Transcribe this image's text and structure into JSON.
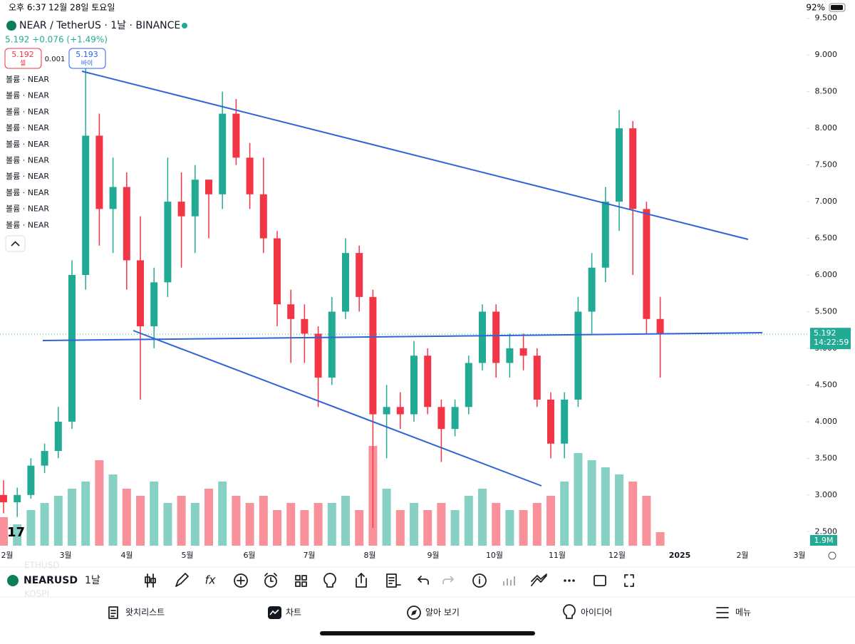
{
  "status_bar": {
    "time": "오후 6:37",
    "date": "12월 28일 토요일",
    "battery": "92%"
  },
  "header": {
    "symbol_title": "NEAR / TetherUS · 1날 · BINANCE",
    "price_change": "5.192 +0.076 (+1.49%)",
    "sell_price": "5.192",
    "sell_label": "셀",
    "spread": "0.001",
    "buy_price": "5.193",
    "buy_label": "바이",
    "indicators": [
      "볼륨 · NEAR",
      "볼륨 · NEAR",
      "볼륨 · NEAR",
      "볼륨 · NEAR",
      "볼륨 · NEAR",
      "볼륨 · NEAR",
      "볼륨 · NEAR",
      "볼륨 · NEAR",
      "볼륨 · NEAR",
      "볼륨 · NEAR"
    ]
  },
  "chart_data": {
    "type": "candlestick",
    "up_color": "#22ab94",
    "down_color": "#f23645",
    "ylim": [
      2.25,
      9.75
    ],
    "yticks": [
      {
        "value": 9.5,
        "label": "9.500"
      },
      {
        "value": 9.0,
        "label": "9.000"
      },
      {
        "value": 8.5,
        "label": "8.500"
      },
      {
        "value": 8.0,
        "label": "8.000"
      },
      {
        "value": 7.5,
        "label": "7.500"
      },
      {
        "value": 7.0,
        "label": "7.000"
      },
      {
        "value": 6.5,
        "label": "6.500"
      },
      {
        "value": 6.0,
        "label": "6.000"
      },
      {
        "value": 5.5,
        "label": "5.500"
      },
      {
        "value": 5.0,
        "label": "5.000"
      },
      {
        "value": 4.5,
        "label": "4.500"
      },
      {
        "value": 4.0,
        "label": "4.000"
      },
      {
        "value": 3.5,
        "label": "3.500"
      },
      {
        "value": 3.0,
        "label": "3.000"
      },
      {
        "value": 2.5,
        "label": "2.500"
      }
    ],
    "x_labels": [
      "2월",
      "3월",
      "4월",
      "5월",
      "6월",
      "7월",
      "8월",
      "9월",
      "10월",
      "11월",
      "12월",
      "2025",
      "2월",
      "3월"
    ],
    "open": [
      3.0,
      2.9,
      3.0,
      3.4,
      3.6,
      4.0,
      6.0,
      7.9,
      6.9,
      7.2,
      6.2,
      5.3,
      5.9,
      7.0,
      6.8,
      7.3,
      7.1,
      8.2,
      7.6,
      7.1,
      6.5,
      5.6,
      5.4,
      5.2,
      4.6,
      5.5,
      6.3,
      5.7,
      4.1,
      4.2,
      4.1,
      4.9,
      4.2,
      3.9,
      4.2,
      4.8,
      5.5,
      4.8,
      5.0,
      4.9,
      4.3,
      3.7,
      4.3,
      5.5,
      6.1,
      7.0,
      8.0,
      6.9,
      5.4
    ],
    "high": [
      3.2,
      3.1,
      3.5,
      3.7,
      4.2,
      6.2,
      8.95,
      8.2,
      7.6,
      7.4,
      6.8,
      6.1,
      7.6,
      7.4,
      7.5,
      7.3,
      8.5,
      8.4,
      7.8,
      7.6,
      6.6,
      5.8,
      5.6,
      5.3,
      5.7,
      6.5,
      6.4,
      5.8,
      4.5,
      4.4,
      5.1,
      5.0,
      4.3,
      4.3,
      4.9,
      5.6,
      5.6,
      5.2,
      5.2,
      5.0,
      4.4,
      4.4,
      5.7,
      6.3,
      7.2,
      8.25,
      8.1,
      7.0,
      5.7
    ],
    "low": [
      2.75,
      2.7,
      2.95,
      3.3,
      3.5,
      3.9,
      5.8,
      6.4,
      6.3,
      5.8,
      4.3,
      5.0,
      5.7,
      6.1,
      6.3,
      6.5,
      6.9,
      7.5,
      6.9,
      6.3,
      5.3,
      4.8,
      4.8,
      4.2,
      4.5,
      5.4,
      5.5,
      2.55,
      3.5,
      3.9,
      4.0,
      4.1,
      3.45,
      3.8,
      4.1,
      4.7,
      4.6,
      4.6,
      4.7,
      4.2,
      3.5,
      3.5,
      4.2,
      5.2,
      5.9,
      6.6,
      6.0,
      5.2,
      4.6
    ],
    "close": [
      2.9,
      3.0,
      3.4,
      3.6,
      4.0,
      6.0,
      7.9,
      6.9,
      7.2,
      6.2,
      5.3,
      5.9,
      7.0,
      6.8,
      7.3,
      7.1,
      8.2,
      7.6,
      7.1,
      6.5,
      5.6,
      5.4,
      5.2,
      4.6,
      5.5,
      6.3,
      5.7,
      4.1,
      4.2,
      4.1,
      4.9,
      4.2,
      3.9,
      4.2,
      4.8,
      5.5,
      4.8,
      5.0,
      4.9,
      4.3,
      3.7,
      4.3,
      5.5,
      6.1,
      7.0,
      8.0,
      6.9,
      5.4,
      5.192
    ],
    "volume": [
      4,
      3,
      5,
      6,
      7,
      8,
      9,
      12,
      10,
      8,
      7,
      9,
      6,
      7,
      6,
      8,
      9,
      7,
      6,
      7,
      5,
      6,
      5,
      6,
      6,
      7,
      5,
      14,
      8,
      5,
      6,
      5,
      6,
      5,
      7,
      8,
      6,
      5,
      5,
      6,
      7,
      9,
      13,
      12,
      11,
      10,
      9,
      7,
      1.9
    ],
    "volume_label": "1.9M",
    "last_price": 5.192,
    "countdown": "14:22:59"
  },
  "toolbar": {
    "symbol": "NEARUSD",
    "interval": "1날",
    "ghost_symbols": [
      "ETHUSD",
      "KOSPI"
    ]
  },
  "tabs": [
    "왓치리스트",
    "차트",
    "알아 보기",
    "아이디어",
    "메뉴"
  ]
}
